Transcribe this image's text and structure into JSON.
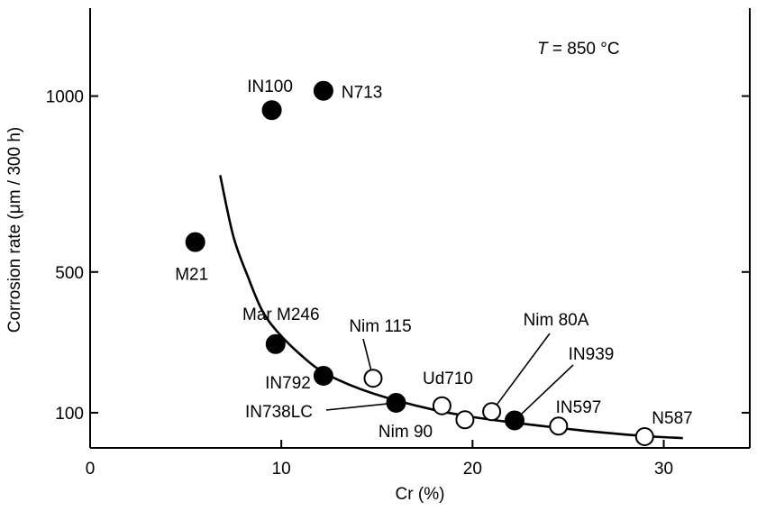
{
  "chart_data": {
    "type": "scatter",
    "title": "",
    "xlabel": "Cr (%)",
    "ylabel": "Corrosion rate (μm / 300 h)",
    "xlim": [
      0,
      34.5
    ],
    "ylim": [
      0,
      1250
    ],
    "xticks": [
      0,
      10,
      20,
      30
    ],
    "yticks": [
      100,
      500,
      1000
    ],
    "annotation_italic": "T",
    "annotation_rest": " = 850 °C",
    "series": [
      {
        "style": "filled",
        "points": [
          {
            "label": "IN100",
            "x": 9.5,
            "y": 960
          },
          {
            "label": "N713",
            "x": 12.2,
            "y": 1015
          },
          {
            "label": "M21",
            "x": 5.5,
            "y": 585
          },
          {
            "label": "Mar M246",
            "x": 9.7,
            "y": 295
          },
          {
            "label": "IN792",
            "x": 12.2,
            "y": 205
          },
          {
            "label": "IN738LC",
            "x": 16.0,
            "y": 128
          },
          {
            "label": "",
            "x": 22.2,
            "y": 78
          }
        ]
      },
      {
        "style": "open",
        "points": [
          {
            "label": "Nim 115",
            "x": 14.8,
            "y": 198
          },
          {
            "label": "Ud710",
            "x": 18.4,
            "y": 120
          },
          {
            "label": "Nim 90",
            "x": 19.6,
            "y": 80
          },
          {
            "label": "Nim 80A",
            "x": 21.0,
            "y": 103
          },
          {
            "label": "IN597",
            "x": 24.5,
            "y": 62
          },
          {
            "label": "N587",
            "x": 29.0,
            "y": 32
          }
        ]
      }
    ],
    "trend_curve": [
      [
        6.8,
        775
      ],
      [
        7.5,
        600
      ],
      [
        8.3,
        480
      ],
      [
        9.0,
        390
      ],
      [
        9.8,
        330
      ],
      [
        11.0,
        265
      ],
      [
        12.2,
        215
      ],
      [
        14.0,
        170
      ],
      [
        16.0,
        135
      ],
      [
        18.0,
        108
      ],
      [
        20.0,
        88
      ],
      [
        22.0,
        73
      ],
      [
        24.0,
        60
      ],
      [
        26.0,
        48
      ],
      [
        28.0,
        38
      ],
      [
        29.5,
        32
      ],
      [
        31.0,
        28
      ]
    ]
  }
}
